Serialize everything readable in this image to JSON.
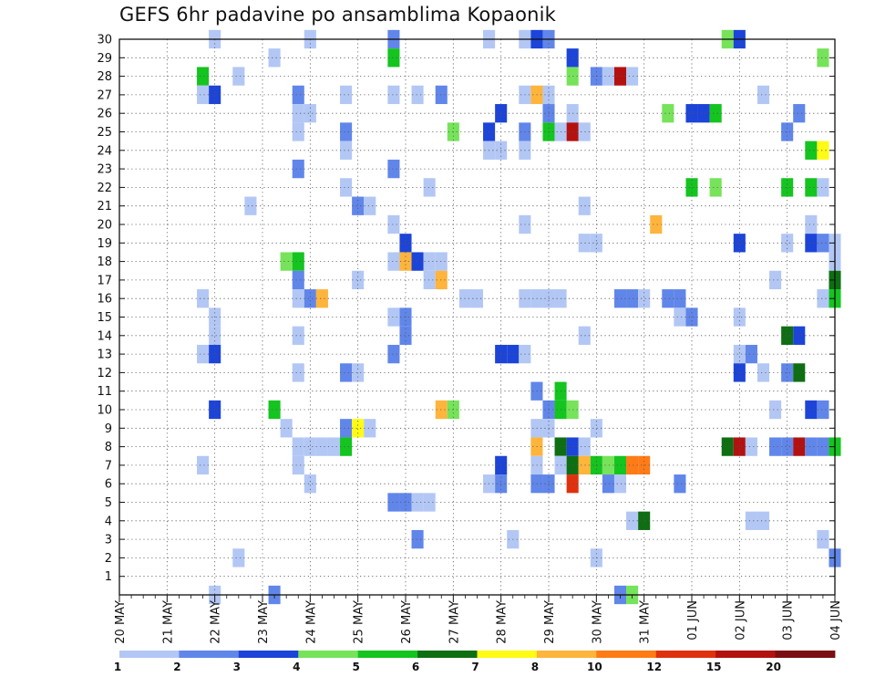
{
  "chart_data": {
    "type": "heatmap",
    "title": "GEFS 6hr padavine po ansamblima Kopaonik",
    "xlabel": "",
    "ylabel": "",
    "x_ticks": [
      "20 MAY",
      "21 MAY",
      "22 MAY",
      "23 MAY",
      "24 MAY",
      "25 MAY",
      "26 MAY",
      "27 MAY",
      "28 MAY",
      "29 MAY",
      "30 MAY",
      "31 MAY",
      "01 JUN",
      "02 JUN",
      "03 JUN",
      "04 JUN"
    ],
    "x_unit": "6-hour step since 20 MAY 00z (4 steps per day)",
    "xlim": [
      0,
      60
    ],
    "y_ticks": [
      1,
      2,
      3,
      4,
      5,
      6,
      7,
      8,
      9,
      10,
      11,
      12,
      13,
      14,
      15,
      16,
      17,
      18,
      19,
      20,
      21,
      22,
      23,
      24,
      25,
      26,
      27,
      28,
      29,
      30
    ],
    "ylim": [
      0,
      30
    ],
    "grid": true,
    "colorbar": {
      "position": "bottom",
      "bounds": [
        "1",
        "2",
        "3",
        "4",
        "5",
        "6",
        "7",
        "8",
        "10",
        "12",
        "15",
        "20"
      ],
      "colors": [
        "#b3c7f5",
        "#6186ea",
        "#1c44d8",
        "#76e35b",
        "#14c41f",
        "#0e6e12",
        "#fffb14",
        "#ffb43c",
        "#ff7b16",
        "#e0310e",
        "#b3110f",
        "#7b0e12"
      ]
    },
    "cells": [
      {
        "x": 8,
        "y": 30,
        "v": 1
      },
      {
        "x": 16,
        "y": 30,
        "v": 1
      },
      {
        "x": 23,
        "y": 30,
        "v": 2
      },
      {
        "x": 31,
        "y": 30,
        "v": 1
      },
      {
        "x": 34,
        "y": 30,
        "v": 1
      },
      {
        "x": 35,
        "y": 30,
        "v": 3
      },
      {
        "x": 36,
        "y": 30,
        "v": 2
      },
      {
        "x": 51,
        "y": 30,
        "v": 4
      },
      {
        "x": 52,
        "y": 30,
        "v": 3
      },
      {
        "x": 13,
        "y": 29,
        "v": 1
      },
      {
        "x": 23,
        "y": 29,
        "v": 5
      },
      {
        "x": 38,
        "y": 29,
        "v": 3
      },
      {
        "x": 59,
        "y": 29,
        "v": 4
      },
      {
        "x": 7,
        "y": 28,
        "v": 5
      },
      {
        "x": 10,
        "y": 28,
        "v": 1
      },
      {
        "x": 38,
        "y": 28,
        "v": 4
      },
      {
        "x": 40,
        "y": 28,
        "v": 2
      },
      {
        "x": 41,
        "y": 28,
        "v": 1
      },
      {
        "x": 42,
        "y": 28,
        "v": 11
      },
      {
        "x": 43,
        "y": 28,
        "v": 1
      },
      {
        "x": 7,
        "y": 27,
        "v": 1
      },
      {
        "x": 8,
        "y": 27,
        "v": 3
      },
      {
        "x": 15,
        "y": 27,
        "v": 2
      },
      {
        "x": 19,
        "y": 27,
        "v": 1
      },
      {
        "x": 23,
        "y": 27,
        "v": 1
      },
      {
        "x": 25,
        "y": 27,
        "v": 1
      },
      {
        "x": 27,
        "y": 27,
        "v": 2
      },
      {
        "x": 34,
        "y": 27,
        "v": 1
      },
      {
        "x": 35,
        "y": 27,
        "v": 8
      },
      {
        "x": 36,
        "y": 27,
        "v": 1
      },
      {
        "x": 54,
        "y": 27,
        "v": 1
      },
      {
        "x": 15,
        "y": 26,
        "v": 1
      },
      {
        "x": 16,
        "y": 26,
        "v": 1
      },
      {
        "x": 32,
        "y": 26,
        "v": 3
      },
      {
        "x": 36,
        "y": 26,
        "v": 2
      },
      {
        "x": 38,
        "y": 26,
        "v": 1
      },
      {
        "x": 46,
        "y": 26,
        "v": 4
      },
      {
        "x": 48,
        "y": 26,
        "v": 3
      },
      {
        "x": 49,
        "y": 26,
        "v": 3
      },
      {
        "x": 50,
        "y": 26,
        "v": 5
      },
      {
        "x": 57,
        "y": 26,
        "v": 2
      },
      {
        "x": 15,
        "y": 25,
        "v": 1
      },
      {
        "x": 19,
        "y": 25,
        "v": 2
      },
      {
        "x": 28,
        "y": 25,
        "v": 4
      },
      {
        "x": 31,
        "y": 25,
        "v": 3
      },
      {
        "x": 34,
        "y": 25,
        "v": 2
      },
      {
        "x": 36,
        "y": 25,
        "v": 5
      },
      {
        "x": 37,
        "y": 25,
        "v": 1
      },
      {
        "x": 38,
        "y": 25,
        "v": 11
      },
      {
        "x": 39,
        "y": 25,
        "v": 1
      },
      {
        "x": 56,
        "y": 25,
        "v": 2
      },
      {
        "x": 19,
        "y": 24,
        "v": 1
      },
      {
        "x": 31,
        "y": 24,
        "v": 1
      },
      {
        "x": 32,
        "y": 24,
        "v": 1
      },
      {
        "x": 34,
        "y": 24,
        "v": 1
      },
      {
        "x": 58,
        "y": 24,
        "v": 5
      },
      {
        "x": 59,
        "y": 24,
        "v": 7
      },
      {
        "x": 15,
        "y": 23,
        "v": 2
      },
      {
        "x": 23,
        "y": 23,
        "v": 2
      },
      {
        "x": 19,
        "y": 22,
        "v": 1
      },
      {
        "x": 26,
        "y": 22,
        "v": 1
      },
      {
        "x": 48,
        "y": 22,
        "v": 5
      },
      {
        "x": 50,
        "y": 22,
        "v": 4
      },
      {
        "x": 56,
        "y": 22,
        "v": 5
      },
      {
        "x": 58,
        "y": 22,
        "v": 5
      },
      {
        "x": 59,
        "y": 22,
        "v": 1
      },
      {
        "x": 11,
        "y": 21,
        "v": 1
      },
      {
        "x": 20,
        "y": 21,
        "v": 2
      },
      {
        "x": 21,
        "y": 21,
        "v": 1
      },
      {
        "x": 39,
        "y": 21,
        "v": 1
      },
      {
        "x": 23,
        "y": 20,
        "v": 1
      },
      {
        "x": 34,
        "y": 20,
        "v": 1
      },
      {
        "x": 45,
        "y": 20,
        "v": 8
      },
      {
        "x": 58,
        "y": 20,
        "v": 1
      },
      {
        "x": 24,
        "y": 19,
        "v": 3
      },
      {
        "x": 39,
        "y": 19,
        "v": 1
      },
      {
        "x": 40,
        "y": 19,
        "v": 1
      },
      {
        "x": 52,
        "y": 19,
        "v": 3
      },
      {
        "x": 56,
        "y": 19,
        "v": 1
      },
      {
        "x": 58,
        "y": 19,
        "v": 3
      },
      {
        "x": 59,
        "y": 19,
        "v": 2
      },
      {
        "x": 60,
        "y": 19,
        "v": 1
      },
      {
        "x": 14,
        "y": 18,
        "v": 4
      },
      {
        "x": 15,
        "y": 18,
        "v": 5
      },
      {
        "x": 23,
        "y": 18,
        "v": 1
      },
      {
        "x": 24,
        "y": 18,
        "v": 8
      },
      {
        "x": 25,
        "y": 18,
        "v": 3
      },
      {
        "x": 26,
        "y": 18,
        "v": 1
      },
      {
        "x": 27,
        "y": 18,
        "v": 1
      },
      {
        "x": 60,
        "y": 18,
        "v": 1
      },
      {
        "x": 15,
        "y": 17,
        "v": 2
      },
      {
        "x": 20,
        "y": 17,
        "v": 1
      },
      {
        "x": 26,
        "y": 17,
        "v": 1
      },
      {
        "x": 27,
        "y": 17,
        "v": 8
      },
      {
        "x": 55,
        "y": 17,
        "v": 1
      },
      {
        "x": 60,
        "y": 17,
        "v": 6
      },
      {
        "x": 7,
        "y": 16,
        "v": 1
      },
      {
        "x": 15,
        "y": 16,
        "v": 1
      },
      {
        "x": 16,
        "y": 16,
        "v": 2
      },
      {
        "x": 17,
        "y": 16,
        "v": 8
      },
      {
        "x": 29,
        "y": 16,
        "v": 1
      },
      {
        "x": 30,
        "y": 16,
        "v": 1
      },
      {
        "x": 34,
        "y": 16,
        "v": 1
      },
      {
        "x": 35,
        "y": 16,
        "v": 1
      },
      {
        "x": 36,
        "y": 16,
        "v": 1
      },
      {
        "x": 37,
        "y": 16,
        "v": 1
      },
      {
        "x": 42,
        "y": 16,
        "v": 2
      },
      {
        "x": 43,
        "y": 16,
        "v": 2
      },
      {
        "x": 44,
        "y": 16,
        "v": 1
      },
      {
        "x": 46,
        "y": 16,
        "v": 2
      },
      {
        "x": 47,
        "y": 16,
        "v": 2
      },
      {
        "x": 59,
        "y": 16,
        "v": 1
      },
      {
        "x": 60,
        "y": 16,
        "v": 5
      },
      {
        "x": 8,
        "y": 15,
        "v": 1
      },
      {
        "x": 24,
        "y": 15,
        "v": 2
      },
      {
        "x": 23,
        "y": 15,
        "v": 1
      },
      {
        "x": 47,
        "y": 15,
        "v": 1
      },
      {
        "x": 48,
        "y": 15,
        "v": 2
      },
      {
        "x": 52,
        "y": 15,
        "v": 1
      },
      {
        "x": 8,
        "y": 14,
        "v": 1
      },
      {
        "x": 15,
        "y": 14,
        "v": 1
      },
      {
        "x": 24,
        "y": 14,
        "v": 2
      },
      {
        "x": 39,
        "y": 14,
        "v": 1
      },
      {
        "x": 56,
        "y": 14,
        "v": 6
      },
      {
        "x": 57,
        "y": 14,
        "v": 3
      },
      {
        "x": 7,
        "y": 13,
        "v": 1
      },
      {
        "x": 8,
        "y": 13,
        "v": 3
      },
      {
        "x": 23,
        "y": 13,
        "v": 2
      },
      {
        "x": 32,
        "y": 13,
        "v": 3
      },
      {
        "x": 33,
        "y": 13,
        "v": 3
      },
      {
        "x": 34,
        "y": 13,
        "v": 1
      },
      {
        "x": 52,
        "y": 13,
        "v": 1
      },
      {
        "x": 53,
        "y": 13,
        "v": 2
      },
      {
        "x": 15,
        "y": 12,
        "v": 1
      },
      {
        "x": 19,
        "y": 12,
        "v": 2
      },
      {
        "x": 20,
        "y": 12,
        "v": 1
      },
      {
        "x": 52,
        "y": 12,
        "v": 3
      },
      {
        "x": 54,
        "y": 12,
        "v": 1
      },
      {
        "x": 56,
        "y": 12,
        "v": 2
      },
      {
        "x": 57,
        "y": 12,
        "v": 6
      },
      {
        "x": 35,
        "y": 11,
        "v": 2
      },
      {
        "x": 37,
        "y": 11,
        "v": 5
      },
      {
        "x": 8,
        "y": 10,
        "v": 3
      },
      {
        "x": 13,
        "y": 10,
        "v": 5
      },
      {
        "x": 27,
        "y": 10,
        "v": 8
      },
      {
        "x": 28,
        "y": 10,
        "v": 4
      },
      {
        "x": 36,
        "y": 10,
        "v": 2
      },
      {
        "x": 37,
        "y": 10,
        "v": 5
      },
      {
        "x": 38,
        "y": 10,
        "v": 4
      },
      {
        "x": 55,
        "y": 10,
        "v": 1
      },
      {
        "x": 58,
        "y": 10,
        "v": 3
      },
      {
        "x": 59,
        "y": 10,
        "v": 2
      },
      {
        "x": 14,
        "y": 9,
        "v": 1
      },
      {
        "x": 19,
        "y": 9,
        "v": 2
      },
      {
        "x": 20,
        "y": 9,
        "v": 7
      },
      {
        "x": 21,
        "y": 9,
        "v": 1
      },
      {
        "x": 35,
        "y": 9,
        "v": 1
      },
      {
        "x": 36,
        "y": 9,
        "v": 1
      },
      {
        "x": 40,
        "y": 9,
        "v": 1
      },
      {
        "x": 15,
        "y": 8,
        "v": 1
      },
      {
        "x": 16,
        "y": 8,
        "v": 1
      },
      {
        "x": 17,
        "y": 8,
        "v": 1
      },
      {
        "x": 18,
        "y": 8,
        "v": 1
      },
      {
        "x": 19,
        "y": 8,
        "v": 5
      },
      {
        "x": 35,
        "y": 8,
        "v": 8
      },
      {
        "x": 37,
        "y": 8,
        "v": 6
      },
      {
        "x": 38,
        "y": 8,
        "v": 3
      },
      {
        "x": 39,
        "y": 8,
        "v": 1
      },
      {
        "x": 51,
        "y": 8,
        "v": 6
      },
      {
        "x": 52,
        "y": 8,
        "v": 11
      },
      {
        "x": 53,
        "y": 8,
        "v": 1
      },
      {
        "x": 55,
        "y": 8,
        "v": 2
      },
      {
        "x": 56,
        "y": 8,
        "v": 2
      },
      {
        "x": 57,
        "y": 8,
        "v": 11
      },
      {
        "x": 58,
        "y": 8,
        "v": 2
      },
      {
        "x": 59,
        "y": 8,
        "v": 2
      },
      {
        "x": 60,
        "y": 8,
        "v": 5
      },
      {
        "x": 7,
        "y": 7,
        "v": 1
      },
      {
        "x": 15,
        "y": 7,
        "v": 1
      },
      {
        "x": 32,
        "y": 7,
        "v": 3
      },
      {
        "x": 35,
        "y": 7,
        "v": 1
      },
      {
        "x": 37,
        "y": 7,
        "v": 1
      },
      {
        "x": 38,
        "y": 7,
        "v": 6
      },
      {
        "x": 39,
        "y": 7,
        "v": 8
      },
      {
        "x": 40,
        "y": 7,
        "v": 5
      },
      {
        "x": 41,
        "y": 7,
        "v": 4
      },
      {
        "x": 42,
        "y": 7,
        "v": 5
      },
      {
        "x": 43,
        "y": 7,
        "v": 9
      },
      {
        "x": 44,
        "y": 7,
        "v": 9
      },
      {
        "x": 16,
        "y": 6,
        "v": 1
      },
      {
        "x": 31,
        "y": 6,
        "v": 1
      },
      {
        "x": 32,
        "y": 6,
        "v": 2
      },
      {
        "x": 35,
        "y": 6,
        "v": 2
      },
      {
        "x": 36,
        "y": 6,
        "v": 2
      },
      {
        "x": 38,
        "y": 6,
        "v": 10
      },
      {
        "x": 41,
        "y": 6,
        "v": 2
      },
      {
        "x": 42,
        "y": 6,
        "v": 1
      },
      {
        "x": 47,
        "y": 6,
        "v": 2
      },
      {
        "x": 23,
        "y": 5,
        "v": 2
      },
      {
        "x": 24,
        "y": 5,
        "v": 2
      },
      {
        "x": 25,
        "y": 5,
        "v": 1
      },
      {
        "x": 26,
        "y": 5,
        "v": 1
      },
      {
        "x": 43,
        "y": 4,
        "v": 1
      },
      {
        "x": 44,
        "y": 4,
        "v": 6
      },
      {
        "x": 53,
        "y": 4,
        "v": 1
      },
      {
        "x": 54,
        "y": 4,
        "v": 1
      },
      {
        "x": 25,
        "y": 3,
        "v": 2
      },
      {
        "x": 33,
        "y": 3,
        "v": 1
      },
      {
        "x": 59,
        "y": 3,
        "v": 1
      },
      {
        "x": 10,
        "y": 2,
        "v": 1
      },
      {
        "x": 40,
        "y": 2,
        "v": 1
      },
      {
        "x": 60,
        "y": 2,
        "v": 2
      },
      {
        "x": 8,
        "y": 0,
        "v": 1
      },
      {
        "x": 13,
        "y": 0,
        "v": 2
      },
      {
        "x": 42,
        "y": 0,
        "v": 2
      },
      {
        "x": 43,
        "y": 0,
        "v": 4
      }
    ]
  }
}
